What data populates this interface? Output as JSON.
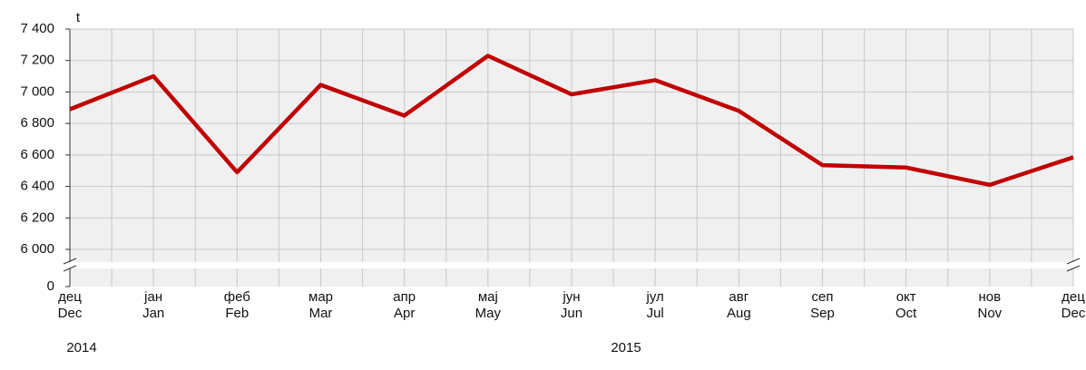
{
  "chart_data": {
    "type": "line",
    "y_label": "t",
    "categories": [
      "дец",
      "јан",
      "феб",
      "мар",
      "апр",
      "мај",
      "јун",
      "јул",
      "авг",
      "сеп",
      "окт",
      "нов",
      "дец"
    ],
    "categories_en": [
      "Dec",
      "Jan",
      "Feb",
      "Mar",
      "Apr",
      "May",
      "Jun",
      "Jul",
      "Aug",
      "Sep",
      "Oct",
      "Nov",
      "Dec"
    ],
    "year_labels": [
      "2014",
      "2015"
    ],
    "series": [
      {
        "color": "#c00000",
        "values": [
          6890,
          7100,
          6490,
          7045,
          6850,
          7230,
          6985,
          7075,
          6880,
          6535,
          6520,
          6410,
          6585
        ]
      }
    ],
    "ylim": [
      6000,
      7400
    ],
    "yticks": [
      0,
      {
        "value": 6000,
        "label": "6 000"
      },
      {
        "value": 6200,
        "label": "6 200"
      },
      {
        "value": 6400,
        "label": "6 400"
      },
      {
        "value": 6600,
        "label": "6 600"
      },
      {
        "value": 6800,
        "label": "6 800"
      },
      {
        "value": 7000,
        "label": "7 000"
      },
      {
        "value": 7200,
        "label": "7 200"
      },
      {
        "value": 7400,
        "label": "7 400"
      }
    ],
    "axis_break": true,
    "grid": true
  }
}
